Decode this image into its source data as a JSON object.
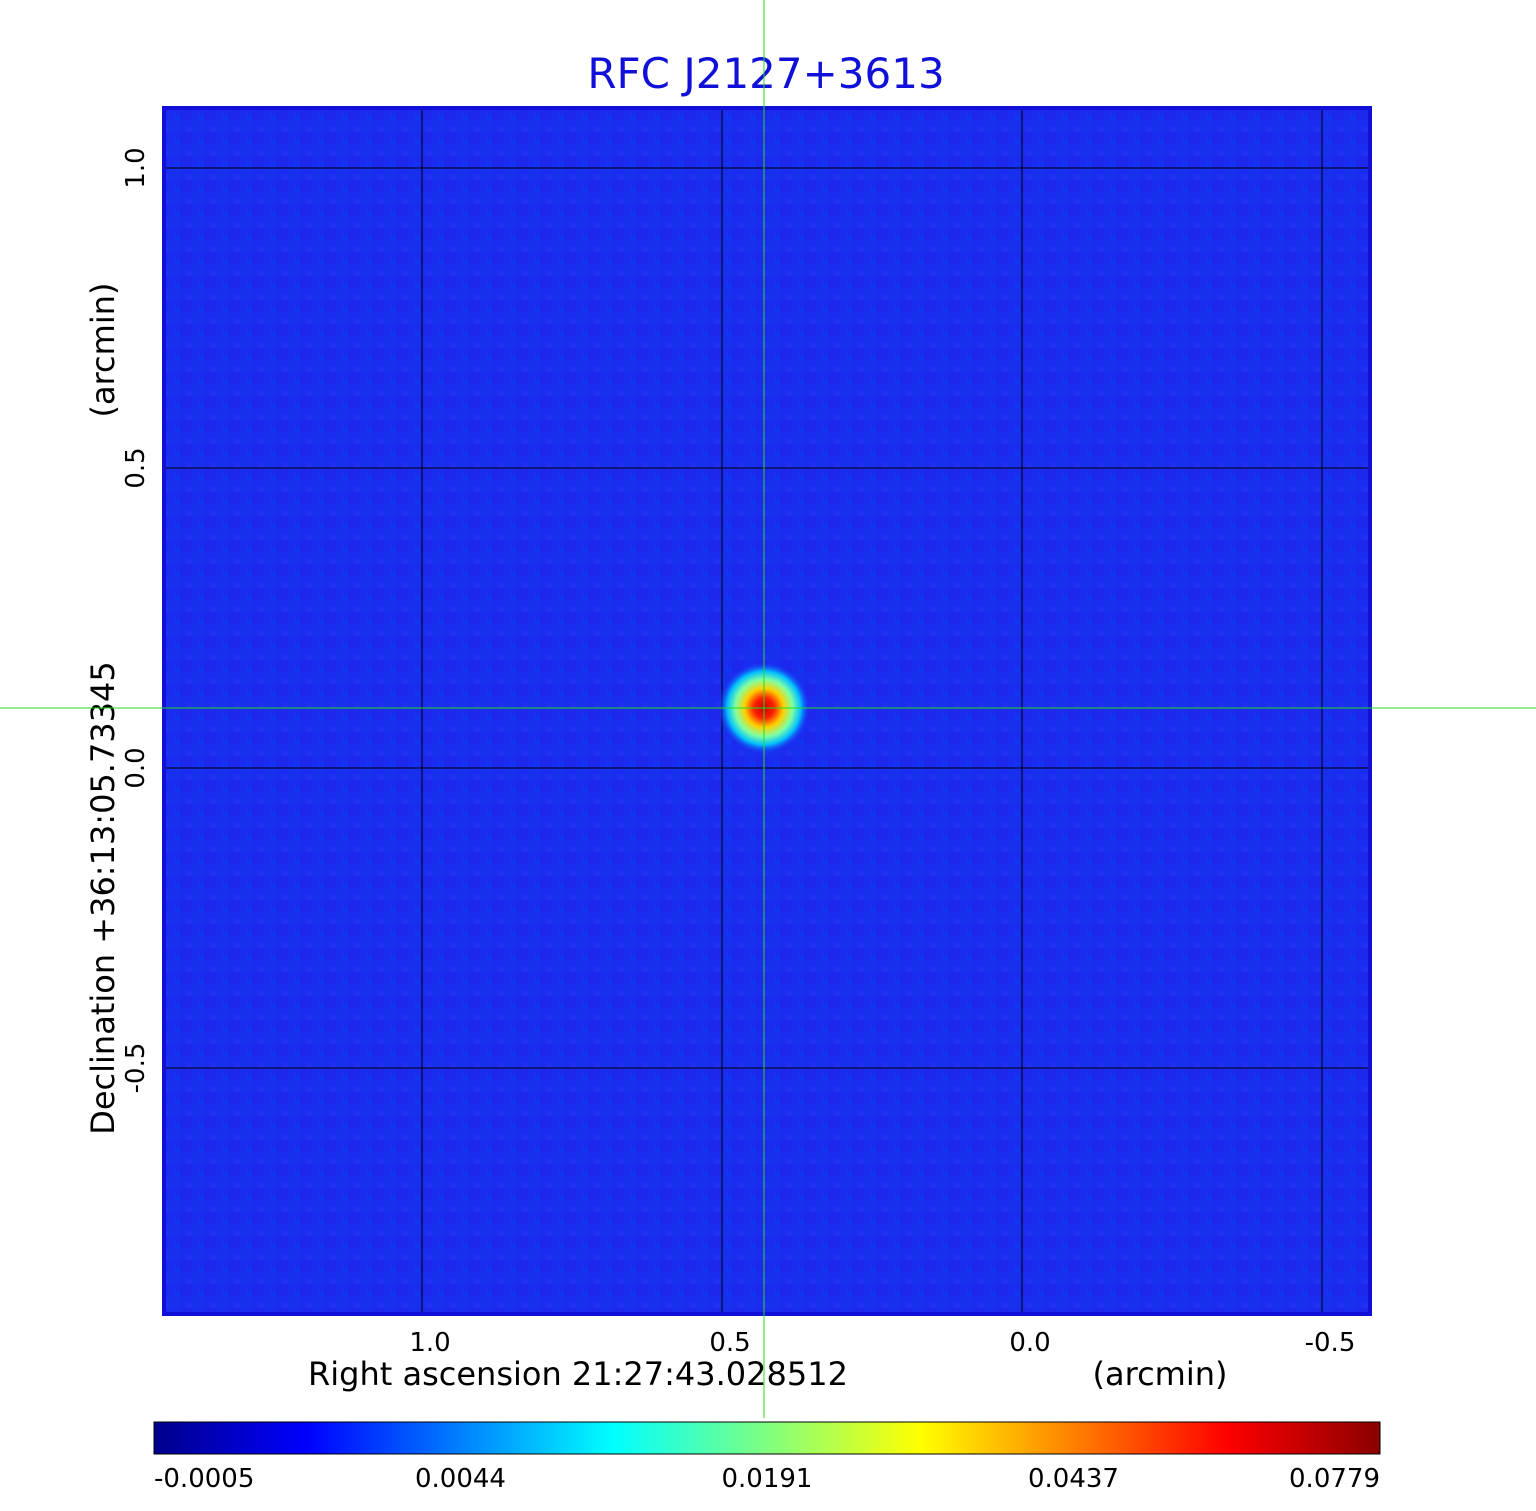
{
  "chart_data": {
    "type": "heatmap",
    "title": "RFC J2127+3613",
    "xlabel": "Right ascension  21:27:43.028512",
    "xlabel_unit": "(arcmin)",
    "ylabel": "Declination  +36:13:05.73345",
    "ylabel_unit": "(arcmin)",
    "x_ticks": [
      "1.0",
      "0.5",
      "0.0",
      "-0.5"
    ],
    "x_tick_values": [
      1.0,
      0.5,
      0.0,
      -0.5
    ],
    "y_ticks": [
      "1.0",
      "0.5",
      "0.0",
      "-0.5"
    ],
    "y_tick_values": [
      1.0,
      0.5,
      0.0,
      -0.5
    ],
    "xlim": [
      1.43,
      -0.58
    ],
    "ylim": [
      -0.91,
      1.1
    ],
    "grid": true,
    "source": {
      "x": 0.43,
      "y": 0.1,
      "peak": 0.0779
    },
    "colorbar": {
      "ticks": [
        "-0.0005",
        "0.0044",
        "0.0191",
        "0.0437",
        "0.0779"
      ],
      "values": [
        -0.0005,
        0.0044,
        0.0191,
        0.0437,
        0.0779
      ],
      "colors": [
        "#00008b",
        "#0000ff",
        "#0080ff",
        "#00ffff",
        "#80ff80",
        "#ffff00",
        "#ff8000",
        "#ff0000",
        "#8b0000"
      ]
    },
    "crosshair_color": "#22dd22",
    "background_color": "#1a2cf0",
    "frame_color": "#1010d8"
  }
}
